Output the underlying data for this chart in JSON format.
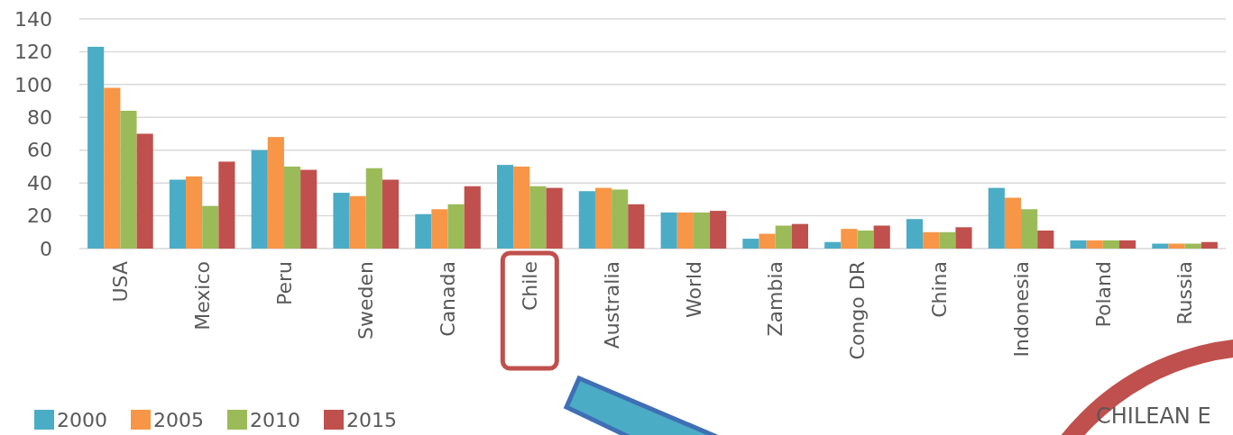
{
  "chart_data": {
    "type": "bar",
    "categories": [
      "USA",
      "Mexico",
      "Peru",
      "Sweden",
      "Canada",
      "Chile",
      "Australia",
      "World",
      "Zambia",
      "Congo DR",
      "China",
      "Indonesia",
      "Poland",
      "Russia"
    ],
    "series": [
      {
        "name": "2000",
        "color": "#4bacc6",
        "values": [
          123,
          42,
          60,
          34,
          21,
          51,
          35,
          22,
          6,
          4,
          18,
          37,
          5,
          3
        ]
      },
      {
        "name": "2005",
        "color": "#f79646",
        "values": [
          98,
          44,
          68,
          32,
          24,
          50,
          37,
          22,
          9,
          12,
          10,
          31,
          5,
          3
        ]
      },
      {
        "name": "2010",
        "color": "#9bbb59",
        "values": [
          84,
          26,
          50,
          49,
          27,
          38,
          36,
          22,
          14,
          11,
          10,
          24,
          5,
          3
        ]
      },
      {
        "name": "2015",
        "color": "#c0504d",
        "values": [
          70,
          53,
          48,
          42,
          38,
          37,
          27,
          23,
          15,
          14,
          13,
          11,
          5,
          4
        ]
      }
    ],
    "ylim": [
      0,
      140
    ],
    "yticks": [
      0,
      20,
      40,
      60,
      80,
      100,
      120,
      140
    ],
    "grid": "y",
    "legend": "bottom left",
    "annotations": [
      "CHILEAN E"
    ]
  }
}
